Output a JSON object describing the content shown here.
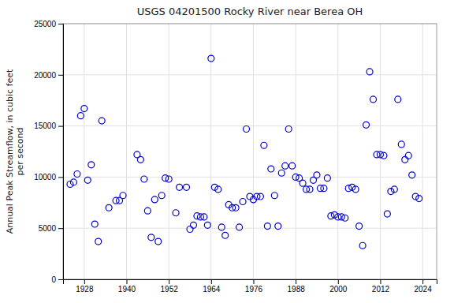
{
  "chart_data": {
    "type": "scatter",
    "title": "USGS 04201500 Rocky River near Berea OH",
    "ylabel": "Annual Peak Streamflow, in cubic feet\nper second",
    "xlim": [
      1922,
      2028
    ],
    "ylim": [
      0,
      25000
    ],
    "xticks": [
      1928,
      1940,
      1952,
      1964,
      1976,
      1988,
      2000,
      2012,
      2024
    ],
    "yticks": [
      0,
      5000,
      10000,
      15000,
      20000,
      25000
    ],
    "grid": true,
    "color": "#0000cc",
    "marker": "circle",
    "x": [
      1924,
      1925,
      1926,
      1927,
      1928,
      1929,
      1930,
      1931,
      1932,
      1933,
      1935,
      1937,
      1938,
      1939,
      1943,
      1944,
      1945,
      1946,
      1947,
      1948,
      1949,
      1950,
      1951,
      1952,
      1954,
      1955,
      1957,
      1958,
      1959,
      1960,
      1961,
      1962,
      1963,
      1964,
      1965,
      1966,
      1967,
      1968,
      1969,
      1970,
      1971,
      1972,
      1973,
      1974,
      1975,
      1976,
      1977,
      1978,
      1979,
      1980,
      1981,
      1982,
      1983,
      1984,
      1985,
      1986,
      1987,
      1988,
      1989,
      1990,
      1991,
      1992,
      1993,
      1994,
      1995,
      1996,
      1997,
      1998,
      1999,
      2000,
      2001,
      2002,
      2003,
      2004,
      2005,
      2006,
      2007,
      2008,
      2009,
      2010,
      2011,
      2012,
      2013,
      2014,
      2015,
      2016,
      2017,
      2018,
      2019,
      2020,
      2021,
      2022,
      2023
    ],
    "values": [
      9300,
      9500,
      10300,
      16000,
      16700,
      9700,
      11200,
      5400,
      3700,
      15500,
      7000,
      7700,
      7700,
      8200,
      12200,
      11700,
      9800,
      6700,
      4100,
      7800,
      3700,
      8200,
      9900,
      9800,
      6500,
      9000,
      9000,
      4900,
      5300,
      6200,
      6100,
      6100,
      5300,
      21600,
      9000,
      8800,
      5100,
      4300,
      7300,
      7000,
      7000,
      5100,
      7600,
      14700,
      8100,
      7800,
      8100,
      8100,
      13100,
      5200,
      10800,
      8200,
      5200,
      10400,
      11100,
      14700,
      11100,
      10000,
      9900,
      9400,
      8800,
      8800,
      9700,
      10200,
      8900,
      8900,
      9900,
      6200,
      6300,
      6100,
      6100,
      6000,
      8900,
      9000,
      8800,
      5200,
      3300,
      15100,
      20300,
      17600,
      12200,
      12200,
      12100,
      6400,
      8600,
      8800,
      17600,
      13200,
      11700,
      12100,
      10200,
      8100,
      7900
    ]
  }
}
